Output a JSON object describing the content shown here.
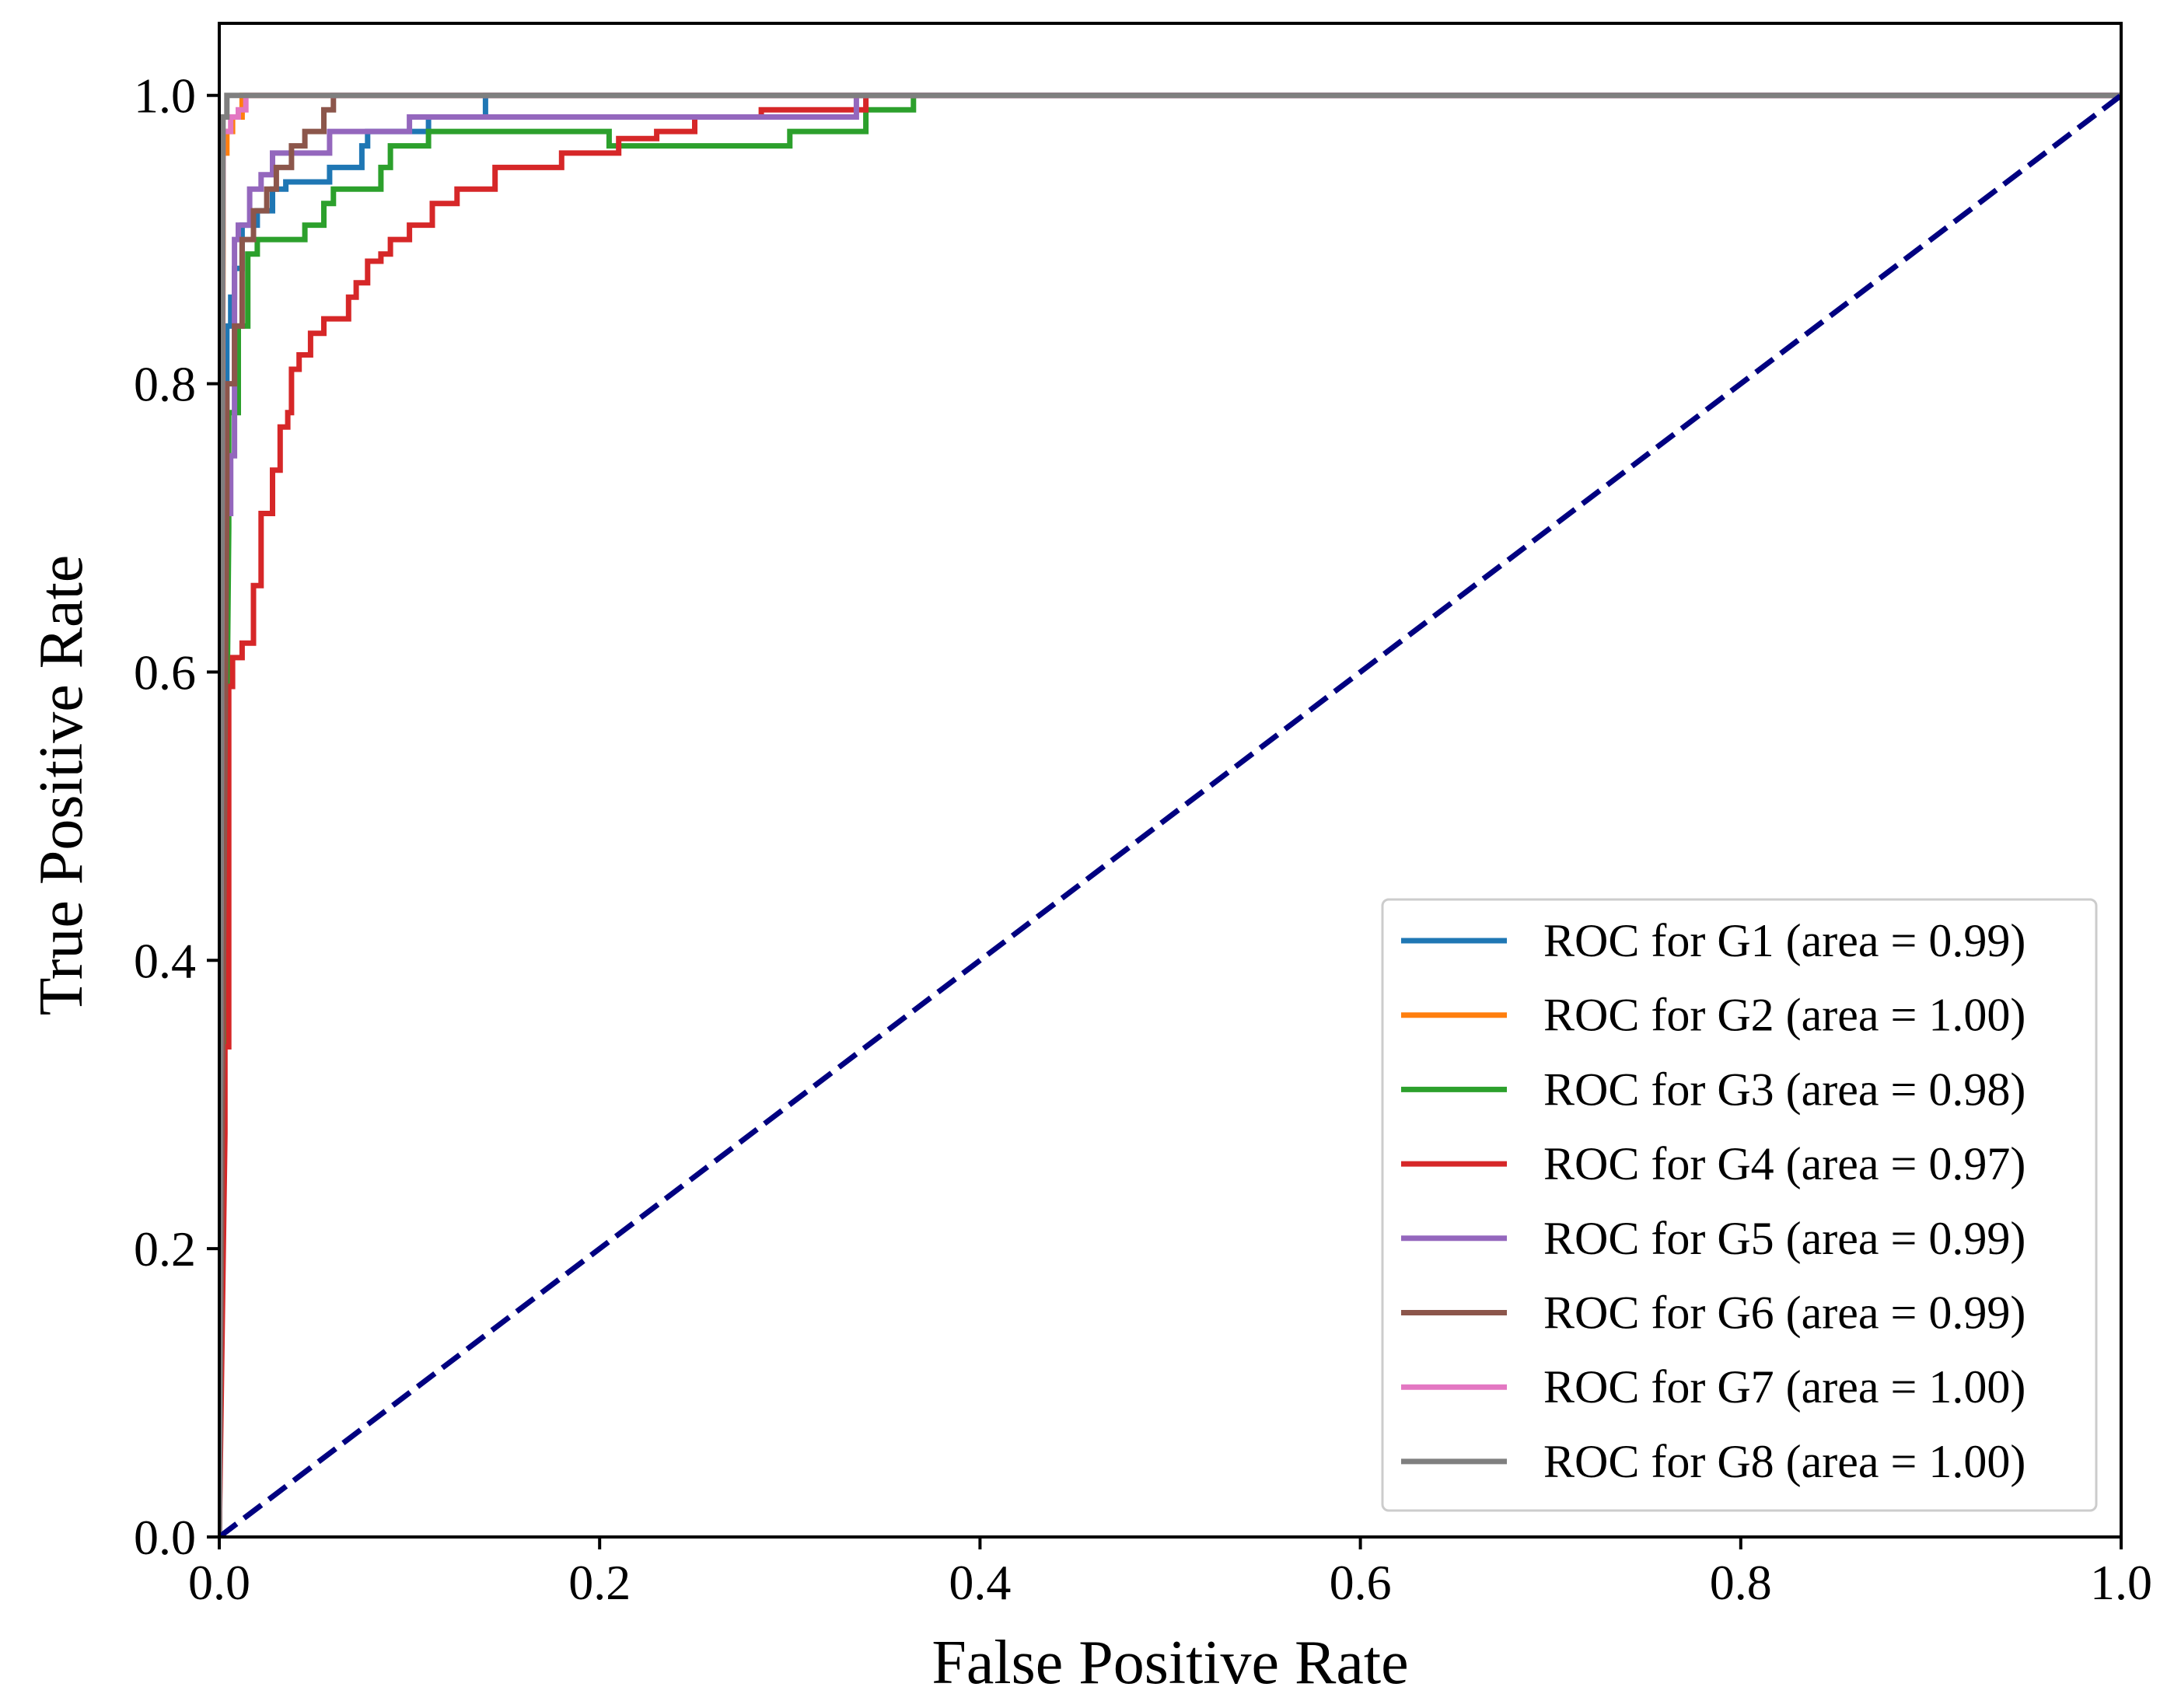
{
  "chart_data": {
    "type": "line",
    "title": "",
    "xlabel": "False Positive Rate",
    "ylabel": "True Positive Rate",
    "xlim": [
      0.0,
      1.0
    ],
    "ylim": [
      0.0,
      1.05
    ],
    "xticks": [
      0.0,
      0.2,
      0.4,
      0.6,
      0.8,
      1.0
    ],
    "xtick_labels": [
      "0.0",
      "0.2",
      "0.4",
      "0.6",
      "0.8",
      "1.0"
    ],
    "yticks": [
      0.0,
      0.2,
      0.4,
      0.6,
      0.8,
      1.0
    ],
    "ytick_labels": [
      "0.0",
      "0.2",
      "0.4",
      "0.6",
      "0.8",
      "1.0"
    ],
    "grid": false,
    "legend_position": "lower-right",
    "diagonal": {
      "name": "chance",
      "color": "#000080",
      "style": "dashed",
      "x": [
        0,
        1
      ],
      "y": [
        0,
        1
      ]
    },
    "series": [
      {
        "name": "ROC for G1 (area = 0.99)",
        "color": "#1f77b4",
        "x": [
          0,
          0.004,
          0.004,
          0.006,
          0.006,
          0.008,
          0.008,
          0.012,
          0.012,
          0.02,
          0.02,
          0.028,
          0.028,
          0.035,
          0.035,
          0.058,
          0.058,
          0.075,
          0.075,
          0.078,
          0.078,
          0.11,
          0.11,
          0.14,
          0.14,
          1.0
        ],
        "y": [
          0,
          0.72,
          0.84,
          0.84,
          0.86,
          0.86,
          0.88,
          0.88,
          0.91,
          0.91,
          0.92,
          0.92,
          0.935,
          0.935,
          0.94,
          0.94,
          0.95,
          0.95,
          0.965,
          0.965,
          0.975,
          0.975,
          0.985,
          0.985,
          1.0,
          1.0
        ]
      },
      {
        "name": "ROC for G2 (area = 1.00)",
        "color": "#ff7f0e",
        "x": [
          0,
          0.002,
          0.002,
          0.004,
          0.004,
          0.007,
          0.007,
          0.012,
          0.012,
          1.0
        ],
        "y": [
          0,
          0.9,
          0.96,
          0.96,
          0.975,
          0.975,
          0.985,
          0.985,
          1.0,
          1.0
        ]
      },
      {
        "name": "ROC for G3 (area = 0.98)",
        "color": "#2ca02c",
        "x": [
          0,
          0.005,
          0.005,
          0.01,
          0.01,
          0.015,
          0.015,
          0.02,
          0.02,
          0.045,
          0.045,
          0.055,
          0.055,
          0.06,
          0.06,
          0.085,
          0.085,
          0.09,
          0.09,
          0.11,
          0.11,
          0.205,
          0.205,
          0.3,
          0.3,
          0.34,
          0.34,
          0.365,
          0.365,
          1.0
        ],
        "y": [
          0,
          0.7,
          0.78,
          0.78,
          0.84,
          0.84,
          0.89,
          0.89,
          0.9,
          0.9,
          0.91,
          0.91,
          0.925,
          0.925,
          0.935,
          0.935,
          0.95,
          0.95,
          0.965,
          0.965,
          0.975,
          0.975,
          0.965,
          0.965,
          0.975,
          0.975,
          0.99,
          0.99,
          1.0,
          1.0
        ]
      },
      {
        "name": "ROC for G4 (area = 0.97)",
        "color": "#d62728",
        "x": [
          0,
          0.003,
          0.003,
          0.005,
          0.005,
          0.007,
          0.007,
          0.012,
          0.012,
          0.018,
          0.018,
          0.022,
          0.022,
          0.028,
          0.028,
          0.032,
          0.032,
          0.036,
          0.036,
          0.038,
          0.038,
          0.042,
          0.042,
          0.048,
          0.048,
          0.055,
          0.055,
          0.068,
          0.068,
          0.072,
          0.072,
          0.078,
          0.078,
          0.085,
          0.085,
          0.09,
          0.09,
          0.1,
          0.1,
          0.112,
          0.112,
          0.125,
          0.125,
          0.145,
          0.145,
          0.18,
          0.18,
          0.21,
          0.21,
          0.23,
          0.23,
          0.25,
          0.25,
          0.285,
          0.285,
          0.34,
          0.34,
          0.36,
          0.36,
          1.0
        ],
        "y": [
          0,
          0.28,
          0.34,
          0.34,
          0.59,
          0.59,
          0.61,
          0.61,
          0.62,
          0.62,
          0.66,
          0.66,
          0.71,
          0.71,
          0.74,
          0.74,
          0.77,
          0.77,
          0.78,
          0.78,
          0.81,
          0.81,
          0.82,
          0.82,
          0.835,
          0.835,
          0.845,
          0.845,
          0.86,
          0.86,
          0.87,
          0.87,
          0.885,
          0.885,
          0.89,
          0.89,
          0.9,
          0.9,
          0.91,
          0.91,
          0.925,
          0.925,
          0.935,
          0.935,
          0.95,
          0.95,
          0.96,
          0.96,
          0.97,
          0.97,
          0.975,
          0.975,
          0.985,
          0.985,
          0.99,
          0.99,
          1.0,
          1.0,
          1.0,
          1.0
        ]
      },
      {
        "name": "ROC for G5 (area = 0.99)",
        "color": "#9467bd",
        "x": [
          0,
          0.002,
          0.002,
          0.006,
          0.006,
          0.008,
          0.008,
          0.01,
          0.01,
          0.016,
          0.016,
          0.022,
          0.022,
          0.028,
          0.028,
          0.058,
          0.058,
          0.1,
          0.1,
          0.335,
          0.335,
          1.0
        ],
        "y": [
          0,
          0.59,
          0.71,
          0.71,
          0.75,
          0.75,
          0.9,
          0.9,
          0.91,
          0.91,
          0.935,
          0.935,
          0.945,
          0.945,
          0.96,
          0.96,
          0.975,
          0.975,
          0.985,
          0.985,
          1.0,
          1.0
        ]
      },
      {
        "name": "ROC for G6 (area = 0.99)",
        "color": "#8c564b",
        "x": [
          0,
          0.004,
          0.004,
          0.008,
          0.008,
          0.012,
          0.012,
          0.018,
          0.018,
          0.025,
          0.025,
          0.03,
          0.03,
          0.038,
          0.038,
          0.045,
          0.045,
          0.055,
          0.055,
          0.06,
          0.06,
          1.0
        ],
        "y": [
          0,
          0.72,
          0.8,
          0.8,
          0.84,
          0.84,
          0.9,
          0.9,
          0.92,
          0.92,
          0.935,
          0.935,
          0.95,
          0.95,
          0.965,
          0.965,
          0.975,
          0.975,
          0.99,
          0.99,
          1.0,
          1.0
        ]
      },
      {
        "name": "ROC for G7 (area = 1.00)",
        "color": "#e377c2",
        "x": [
          0,
          0.002,
          0.002,
          0.006,
          0.006,
          0.01,
          0.01,
          0.014,
          0.014,
          1.0
        ],
        "y": [
          0,
          0.95,
          0.975,
          0.975,
          0.985,
          0.985,
          0.99,
          0.99,
          1.0,
          1.0
        ]
      },
      {
        "name": "ROC for G8 (area = 1.00)",
        "color": "#7f7f7f",
        "x": [
          0,
          0.002,
          0.002,
          0.004,
          0.004,
          1.0
        ],
        "y": [
          0,
          0.985,
          0.985,
          0.985,
          1.0,
          1.0
        ]
      }
    ]
  }
}
